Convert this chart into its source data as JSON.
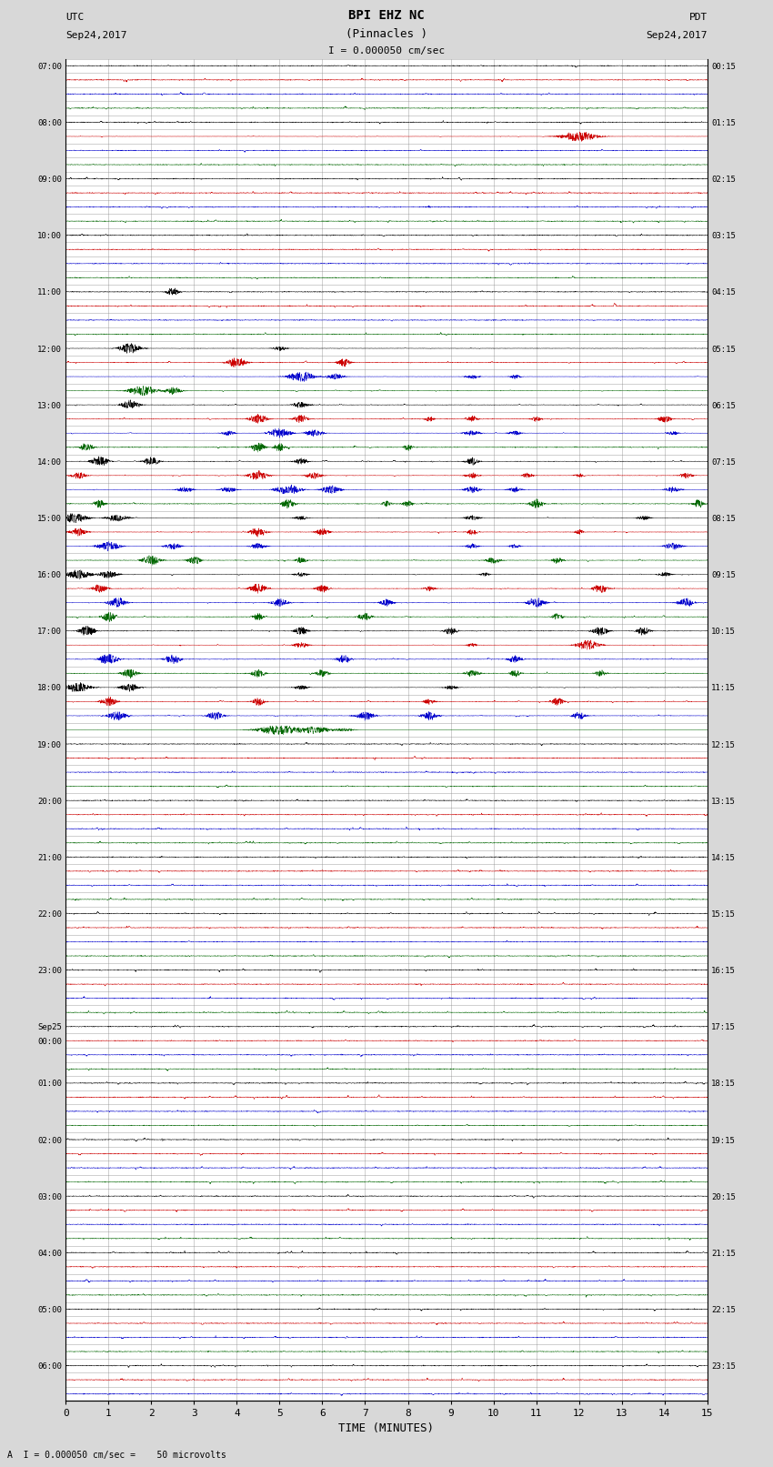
{
  "title_line1": "BPI EHZ NC",
  "title_line2": "(Pinnacles )",
  "scale_label": "I = 0.000050 cm/sec",
  "left_header": "UTC",
  "left_date": "Sep24,2017",
  "right_header": "PDT",
  "right_date": "Sep24,2017",
  "bottom_label": "TIME (MINUTES)",
  "bottom_note": "A  I = 0.000050 cm/sec =    50 microvolts",
  "x_min": 0,
  "x_max": 15,
  "x_ticks": [
    0,
    1,
    2,
    3,
    4,
    5,
    6,
    7,
    8,
    9,
    10,
    11,
    12,
    13,
    14,
    15
  ],
  "background_color": "#d8d8d8",
  "plot_bg_color": "#ffffff",
  "grid_color": "#888888",
  "trace_colors": [
    "#000000",
    "#cc0000",
    "#0000cc",
    "#006600"
  ],
  "figsize": [
    8.5,
    16.13
  ],
  "dpi": 100,
  "left_labels": [
    "07:00",
    "",
    "",
    "",
    "08:00",
    "",
    "",
    "",
    "09:00",
    "",
    "",
    "",
    "10:00",
    "",
    "",
    "",
    "11:00",
    "",
    "",
    "",
    "12:00",
    "",
    "",
    "",
    "13:00",
    "",
    "",
    "",
    "14:00",
    "",
    "",
    "",
    "15:00",
    "",
    "",
    "",
    "16:00",
    "",
    "",
    "",
    "17:00",
    "",
    "",
    "",
    "18:00",
    "",
    "",
    "",
    "19:00",
    "",
    "",
    "",
    "20:00",
    "",
    "",
    "",
    "21:00",
    "",
    "",
    "",
    "22:00",
    "",
    "",
    "",
    "23:00",
    "",
    "",
    "",
    "Sep25",
    "00:00",
    "",
    "",
    "01:00",
    "",
    "",
    "",
    "02:00",
    "",
    "",
    "",
    "03:00",
    "",
    "",
    "",
    "04:00",
    "",
    "",
    "",
    "05:00",
    "",
    "",
    "",
    "06:00",
    "",
    ""
  ],
  "right_labels": [
    "00:15",
    "",
    "",
    "",
    "01:15",
    "",
    "",
    "",
    "02:15",
    "",
    "",
    "",
    "03:15",
    "",
    "",
    "",
    "04:15",
    "",
    "",
    "",
    "05:15",
    "",
    "",
    "",
    "06:15",
    "",
    "",
    "",
    "07:15",
    "",
    "",
    "",
    "08:15",
    "",
    "",
    "",
    "09:15",
    "",
    "",
    "",
    "10:15",
    "",
    "",
    "",
    "11:15",
    "",
    "",
    "",
    "12:15",
    "",
    "",
    "",
    "13:15",
    "",
    "",
    "",
    "14:15",
    "",
    "",
    "",
    "15:15",
    "",
    "",
    "",
    "16:15",
    "",
    "",
    "",
    "17:15",
    "",
    "",
    "",
    "18:15",
    "",
    "",
    "",
    "19:15",
    "",
    "",
    "",
    "20:15",
    "",
    "",
    "",
    "21:15",
    "",
    "",
    "",
    "22:15",
    "",
    "",
    "",
    "23:15",
    "",
    ""
  ]
}
